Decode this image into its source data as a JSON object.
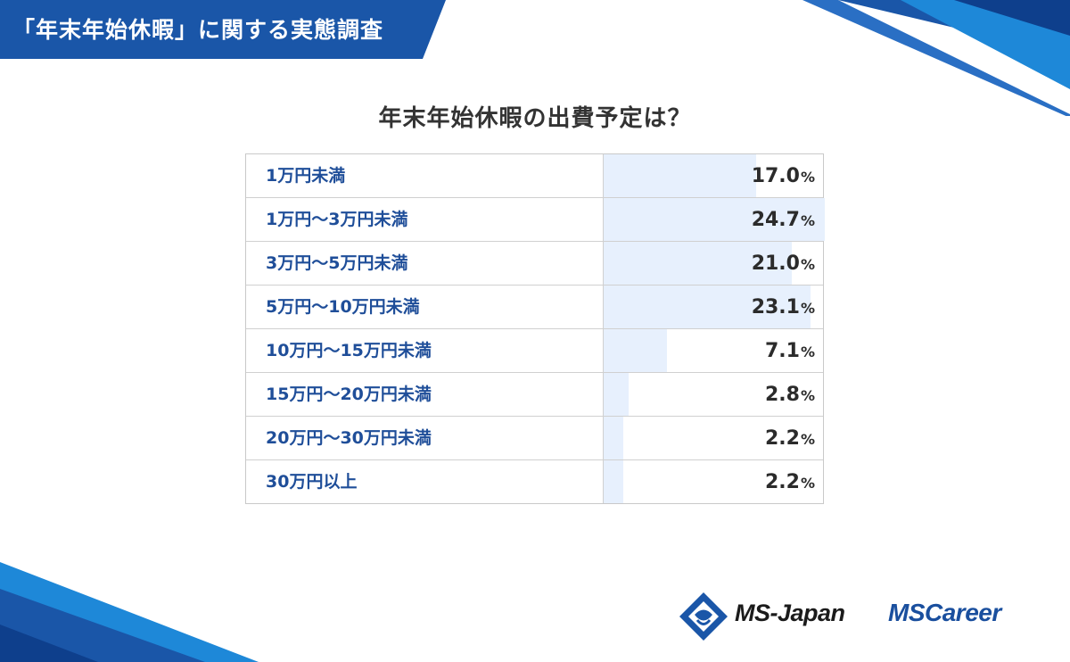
{
  "header": {
    "title": "「年末年始休暇」に関する実態調査"
  },
  "chart_data": {
    "type": "table",
    "title": "年末年始休暇の出費予定は？",
    "unit": "%",
    "categories": [
      "1万円未満",
      "1万円～3万円未満",
      "3万円～5万円未満",
      "5万円～10万円未満",
      "10万円～15万円未満",
      "15万円～20万円未満",
      "20万円～30万円未満",
      "30万円以上"
    ],
    "values": [
      17.0,
      24.7,
      21.0,
      23.1,
      7.1,
      2.8,
      2.2,
      2.2
    ],
    "value_labels": [
      "17.0",
      "24.7",
      "21.0",
      "23.1",
      "7.1",
      "2.8",
      "2.2",
      "2.2"
    ],
    "bar_color": "#e7f0fd",
    "label_color": "#1f4e99"
  },
  "logos": {
    "ms_japan": "MS-Japan",
    "ms_career": "MSCareer"
  },
  "colors": {
    "brand_blue": "#1a56a8",
    "accent_blue": "#1e88d8"
  }
}
